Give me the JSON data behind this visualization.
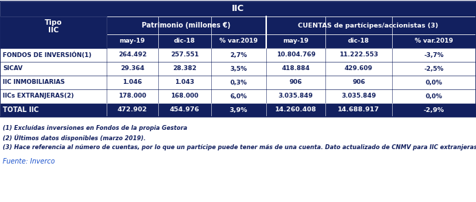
{
  "title": "IIC",
  "header1": "Patrimonio (millones €)",
  "header2": "CUENTAS de partícipes/accionistas",
  "header2_sup": " (3)",
  "col_headers": [
    "may-19",
    "dic-18",
    "% var.2019",
    "may-19",
    "dic-18",
    "% var.2019"
  ],
  "rows": [
    [
      "FONDOS DE INVERSIÓN(1)",
      "264.492",
      "257.551",
      "2,7%",
      "10.804.769",
      "11.222.553",
      "-3,7%"
    ],
    [
      "SICAV",
      "29.364",
      "28.382",
      "3,5%",
      "418.884",
      "429.609",
      "-2,5%"
    ],
    [
      "IIC INMOBILIARIAS",
      "1.046",
      "1.043",
      "0,3%",
      "906",
      "906",
      "0,0%"
    ],
    [
      "IICs EXTRANJERAS(2)",
      "178.000",
      "168.000",
      "6,0%",
      "3.035.849",
      "3.035.849",
      "0,0%"
    ]
  ],
  "total_row": [
    "TOTAL IIC",
    "472.902",
    "454.976",
    "3,9%",
    "14.260.408",
    "14.688.917",
    "-2,9%"
  ],
  "footnotes": [
    "(1) Excluídas inversiones en Fondos de la propia Gestora",
    "(2) Últimos datos disponibles (marzo 2019).",
    "(3) Hace referencia al número de cuentas, por lo que un partícipe puede tener más de una cuenta. Dato actualizado de CNMV para IIC extranjeras"
  ],
  "source": "Fuente: Inverco",
  "dark_blue": "#12205f",
  "white": "#ffffff",
  "blue_text": "#12205f",
  "row_white": "#ffffff",
  "footnote_color": "#12205f",
  "source_color": "#1a52cc"
}
